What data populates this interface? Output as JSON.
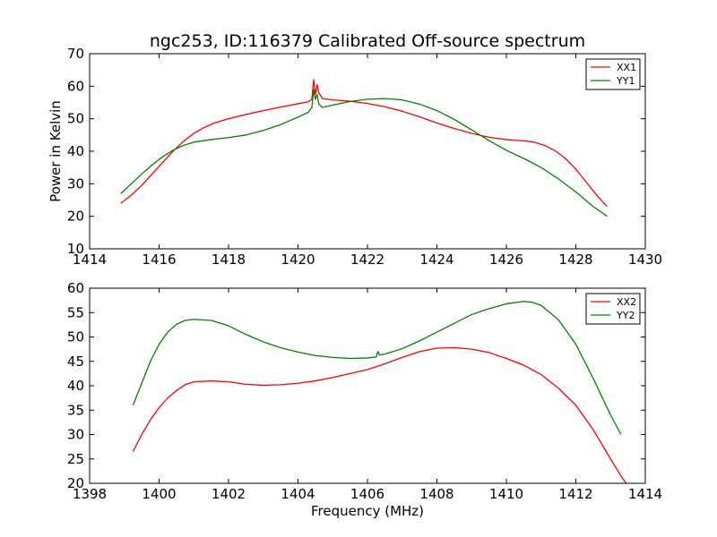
{
  "title": "ngc253, ID:116379 Calibrated Off-source spectrum",
  "chart_data": [
    {
      "type": "line",
      "title": "ngc253, ID:116379 Calibrated Off-source spectrum",
      "xlabel": "",
      "ylabel": "Power in Kelvin",
      "xlim": [
        1414,
        1430
      ],
      "ylim": [
        10,
        70
      ],
      "xticks": [
        "1414",
        "1416",
        "1418",
        "1420",
        "1422",
        "1424",
        "1426",
        "1428",
        "1430"
      ],
      "yticks": [
        "10",
        "20",
        "30",
        "40",
        "50",
        "60",
        "70"
      ],
      "grid": false,
      "legend_position": "top-right",
      "series": [
        {
          "name": "XX1",
          "color": "#ff0000",
          "points": [
            [
              1414.9,
              24.0
            ],
            [
              1415.2,
              26.5
            ],
            [
              1415.5,
              29.5
            ],
            [
              1415.8,
              33.0
            ],
            [
              1416.1,
              36.5
            ],
            [
              1416.4,
              40.0
            ],
            [
              1416.7,
              43.0
            ],
            [
              1417.0,
              45.5
            ],
            [
              1417.3,
              47.3
            ],
            [
              1417.6,
              48.7
            ],
            [
              1418.0,
              50.0
            ],
            [
              1418.5,
              51.3
            ],
            [
              1419.0,
              52.5
            ],
            [
              1419.5,
              53.6
            ],
            [
              1420.0,
              54.6
            ],
            [
              1420.3,
              55.2
            ],
            [
              1420.4,
              56.0
            ],
            [
              1420.45,
              62.0
            ],
            [
              1420.5,
              57.5
            ],
            [
              1420.55,
              60.5
            ],
            [
              1420.6,
              58.0
            ],
            [
              1420.7,
              56.2
            ],
            [
              1421.0,
              55.8
            ],
            [
              1421.5,
              55.4
            ],
            [
              1422.0,
              54.7
            ],
            [
              1422.5,
              53.7
            ],
            [
              1423.0,
              52.3
            ],
            [
              1423.5,
              50.6
            ],
            [
              1424.0,
              48.7
            ],
            [
              1424.5,
              47.0
            ],
            [
              1425.0,
              45.5
            ],
            [
              1425.5,
              44.3
            ],
            [
              1426.0,
              43.6
            ],
            [
              1426.5,
              43.2
            ],
            [
              1426.8,
              42.8
            ],
            [
              1427.1,
              41.8
            ],
            [
              1427.4,
              40.2
            ],
            [
              1427.7,
              37.8
            ],
            [
              1428.0,
              34.5
            ],
            [
              1428.3,
              30.5
            ],
            [
              1428.6,
              26.5
            ],
            [
              1428.9,
              23.0
            ]
          ]
        },
        {
          "name": "YY1",
          "color": "#008000",
          "points": [
            [
              1414.9,
              27.0
            ],
            [
              1415.2,
              30.0
            ],
            [
              1415.5,
              33.0
            ],
            [
              1415.8,
              35.8
            ],
            [
              1416.1,
              38.3
            ],
            [
              1416.4,
              40.3
            ],
            [
              1416.7,
              41.8
            ],
            [
              1417.0,
              42.8
            ],
            [
              1417.5,
              43.6
            ],
            [
              1418.0,
              44.2
            ],
            [
              1418.5,
              45.0
            ],
            [
              1419.0,
              46.4
            ],
            [
              1419.5,
              48.2
            ],
            [
              1420.0,
              50.5
            ],
            [
              1420.3,
              52.0
            ],
            [
              1420.4,
              53.5
            ],
            [
              1420.45,
              59.0
            ],
            [
              1420.5,
              56.0
            ],
            [
              1420.55,
              57.5
            ],
            [
              1420.6,
              54.5
            ],
            [
              1420.7,
              53.5
            ],
            [
              1421.0,
              54.2
            ],
            [
              1421.5,
              55.3
            ],
            [
              1422.0,
              56.0
            ],
            [
              1422.5,
              56.2
            ],
            [
              1423.0,
              55.8
            ],
            [
              1423.5,
              54.5
            ],
            [
              1424.0,
              52.5
            ],
            [
              1424.5,
              49.8
            ],
            [
              1425.0,
              46.6
            ],
            [
              1425.5,
              43.3
            ],
            [
              1426.0,
              40.3
            ],
            [
              1426.5,
              37.8
            ],
            [
              1427.0,
              35.0
            ],
            [
              1427.5,
              31.5
            ],
            [
              1428.0,
              27.5
            ],
            [
              1428.5,
              23.0
            ],
            [
              1428.9,
              20.0
            ]
          ]
        }
      ]
    },
    {
      "type": "line",
      "title": "",
      "xlabel": "Frequency (MHz)",
      "ylabel": "",
      "xlim": [
        1398,
        1414
      ],
      "ylim": [
        20,
        60
      ],
      "xticks": [
        "1398",
        "1400",
        "1402",
        "1404",
        "1406",
        "1408",
        "1410",
        "1412",
        "1414"
      ],
      "yticks": [
        "20",
        "25",
        "30",
        "35",
        "40",
        "45",
        "50",
        "55",
        "60"
      ],
      "grid": false,
      "legend_position": "top-right",
      "series": [
        {
          "name": "XX2",
          "color": "#ff0000",
          "points": [
            [
              1399.25,
              26.5
            ],
            [
              1399.5,
              30.0
            ],
            [
              1399.75,
              33.0
            ],
            [
              1400.0,
              35.5
            ],
            [
              1400.25,
              37.5
            ],
            [
              1400.5,
              39.0
            ],
            [
              1400.75,
              40.2
            ],
            [
              1401.0,
              40.8
            ],
            [
              1401.5,
              41.0
            ],
            [
              1402.0,
              40.8
            ],
            [
              1402.5,
              40.3
            ],
            [
              1403.0,
              40.1
            ],
            [
              1403.5,
              40.2
            ],
            [
              1404.0,
              40.5
            ],
            [
              1404.5,
              41.0
            ],
            [
              1405.0,
              41.7
            ],
            [
              1405.5,
              42.5
            ],
            [
              1406.0,
              43.3
            ],
            [
              1406.5,
              44.5
            ],
            [
              1407.0,
              45.8
            ],
            [
              1407.5,
              47.0
            ],
            [
              1408.0,
              47.7
            ],
            [
              1408.5,
              47.8
            ],
            [
              1409.0,
              47.5
            ],
            [
              1409.5,
              46.8
            ],
            [
              1410.0,
              45.6
            ],
            [
              1410.5,
              44.2
            ],
            [
              1411.0,
              42.3
            ],
            [
              1411.5,
              39.5
            ],
            [
              1412.0,
              36.0
            ],
            [
              1412.5,
              31.0
            ],
            [
              1413.0,
              25.0
            ],
            [
              1413.3,
              21.5
            ],
            [
              1413.5,
              19.5
            ]
          ]
        },
        {
          "name": "YY2",
          "color": "#008000",
          "points": [
            [
              1399.25,
              36.0
            ],
            [
              1399.5,
              40.5
            ],
            [
              1399.75,
              45.0
            ],
            [
              1400.0,
              48.5
            ],
            [
              1400.25,
              51.0
            ],
            [
              1400.5,
              52.6
            ],
            [
              1400.75,
              53.4
            ],
            [
              1401.0,
              53.6
            ],
            [
              1401.5,
              53.4
            ],
            [
              1402.0,
              52.3
            ],
            [
              1402.5,
              50.5
            ],
            [
              1403.0,
              49.0
            ],
            [
              1403.5,
              47.8
            ],
            [
              1404.0,
              46.9
            ],
            [
              1404.5,
              46.2
            ],
            [
              1405.0,
              45.8
            ],
            [
              1405.5,
              45.6
            ],
            [
              1406.0,
              45.7
            ],
            [
              1406.25,
              45.9
            ],
            [
              1406.3,
              47.0
            ],
            [
              1406.35,
              46.3
            ],
            [
              1406.5,
              46.5
            ],
            [
              1407.0,
              47.6
            ],
            [
              1407.5,
              49.2
            ],
            [
              1408.0,
              51.0
            ],
            [
              1408.5,
              52.8
            ],
            [
              1409.0,
              54.6
            ],
            [
              1409.5,
              55.8
            ],
            [
              1410.0,
              56.8
            ],
            [
              1410.5,
              57.3
            ],
            [
              1410.75,
              57.1
            ],
            [
              1411.0,
              56.5
            ],
            [
              1411.5,
              53.5
            ],
            [
              1412.0,
              48.5
            ],
            [
              1412.5,
              41.5
            ],
            [
              1413.0,
              34.0
            ],
            [
              1413.3,
              30.0
            ]
          ]
        }
      ]
    }
  ]
}
